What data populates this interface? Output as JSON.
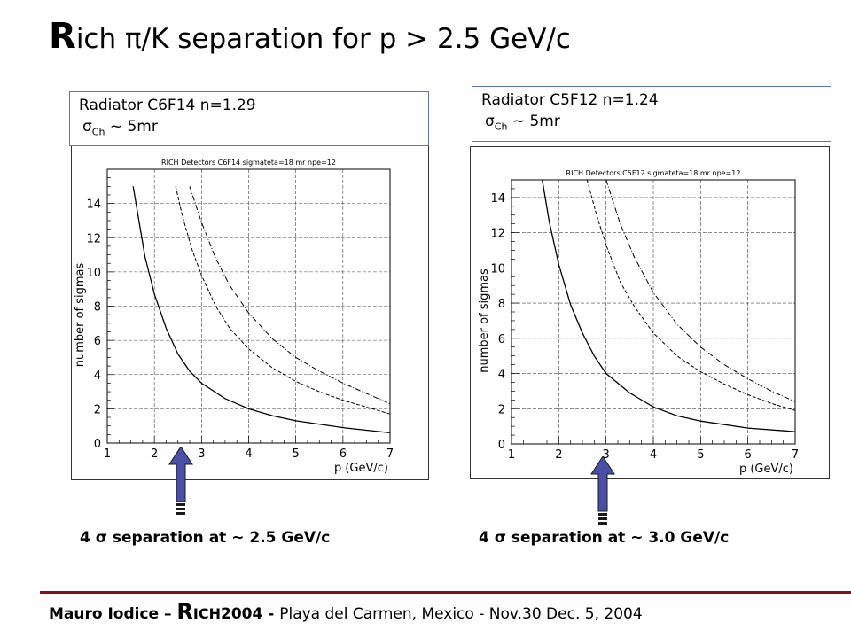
{
  "title": {
    "big_letter": "R",
    "text": "ich π/K separation for p > 2.5 GeV/c"
  },
  "panels": [
    {
      "radiator_label": "Radiator C6F14 n=1.29",
      "sigma_label": "σ",
      "sigma_sub": "Ch",
      "sigma_value": " ~ 5mr",
      "caption": "4 σ separation at ~ 2.5 GeV/c",
      "arrow_color": "#4a50a8"
    },
    {
      "radiator_label": "Radiator C5F12 n=1.24",
      "sigma_label": "σ",
      "sigma_sub": "Ch",
      "sigma_value": " ~ 5mr",
      "caption": "4 σ separation at ~ 3.0 GeV/c",
      "arrow_color": "#4a50a8"
    }
  ],
  "chart_data": [
    {
      "type": "line",
      "title": "RICH Detectors C6F14 sigmateta=18 mr npe=12",
      "xlabel": "p (GeV/c)",
      "ylabel": "number of sigmas",
      "xlim": [
        1,
        7
      ],
      "ylim": [
        0,
        16
      ],
      "xticks": [
        "1",
        "2",
        "3",
        "4",
        "5",
        "6",
        "7"
      ],
      "yticks": [
        "0",
        "2",
        "4",
        "6",
        "8",
        "10",
        "12",
        "14"
      ],
      "grid": true,
      "series": [
        {
          "style": "solid",
          "x": [
            1.55,
            1.8,
            2.0,
            2.25,
            2.5,
            2.75,
            3.0,
            3.5,
            4.0,
            4.5,
            5.0,
            6.0,
            7.0
          ],
          "y": [
            15.0,
            10.9,
            8.7,
            6.7,
            5.2,
            4.2,
            3.5,
            2.6,
            2.0,
            1.6,
            1.3,
            0.9,
            0.6
          ]
        },
        {
          "style": "dashed",
          "x": [
            2.45,
            2.6,
            2.8,
            3.0,
            3.3,
            3.6,
            4.0,
            4.5,
            5.0,
            5.5,
            6.0,
            6.5,
            7.0
          ],
          "y": [
            15.0,
            13.2,
            11.3,
            9.8,
            8.0,
            6.7,
            5.5,
            4.4,
            3.6,
            3.0,
            2.5,
            2.1,
            1.7
          ]
        },
        {
          "style": "dotted",
          "x": [
            2.75,
            3.0,
            3.3,
            3.6,
            4.0,
            4.5,
            5.0,
            5.5,
            6.0,
            6.5,
            7.0
          ],
          "y": [
            15.0,
            12.9,
            10.8,
            9.2,
            7.6,
            6.1,
            5.0,
            4.2,
            3.5,
            2.9,
            2.3
          ]
        }
      ]
    },
    {
      "type": "line",
      "title": "RICH Detectors C5F12 sigmateta=18 mr npe=12",
      "xlabel": "p (GeV/c)",
      "ylabel": "number of sigmas",
      "xlim": [
        1,
        7
      ],
      "ylim": [
        0,
        15
      ],
      "xticks": [
        "1",
        "2",
        "3",
        "4",
        "5",
        "6",
        "7"
      ],
      "yticks": [
        "0",
        "2",
        "4",
        "6",
        "8",
        "10",
        "12",
        "14"
      ],
      "grid": true,
      "series": [
        {
          "style": "solid",
          "x": [
            1.65,
            1.8,
            2.0,
            2.25,
            2.5,
            2.75,
            3.0,
            3.5,
            4.0,
            4.5,
            5.0,
            6.0,
            7.0
          ],
          "y": [
            15.0,
            12.6,
            10.2,
            7.9,
            6.3,
            5.0,
            4.0,
            2.9,
            2.1,
            1.6,
            1.3,
            0.9,
            0.7
          ]
        },
        {
          "style": "dashed",
          "x": [
            2.6,
            2.8,
            3.0,
            3.3,
            3.6,
            4.0,
            4.5,
            5.0,
            5.5,
            6.0,
            6.5,
            7.0
          ],
          "y": [
            15.0,
            13.0,
            11.3,
            9.2,
            7.8,
            6.3,
            5.0,
            4.1,
            3.4,
            2.8,
            2.3,
            1.9
          ]
        },
        {
          "style": "dotted",
          "x": [
            3.0,
            3.3,
            3.6,
            4.0,
            4.5,
            5.0,
            5.5,
            6.0,
            6.5,
            7.0
          ],
          "y": [
            15.0,
            12.5,
            10.6,
            8.6,
            6.8,
            5.5,
            4.5,
            3.7,
            3.0,
            2.4
          ]
        }
      ]
    }
  ],
  "footer": {
    "name": "Mauro Iodice – ",
    "R": "R",
    "ich": "ICH",
    "year": "2004 - ",
    "rest": "Playa del Carmen, Mexico - Nov.30 Dec. 5, 2004"
  }
}
